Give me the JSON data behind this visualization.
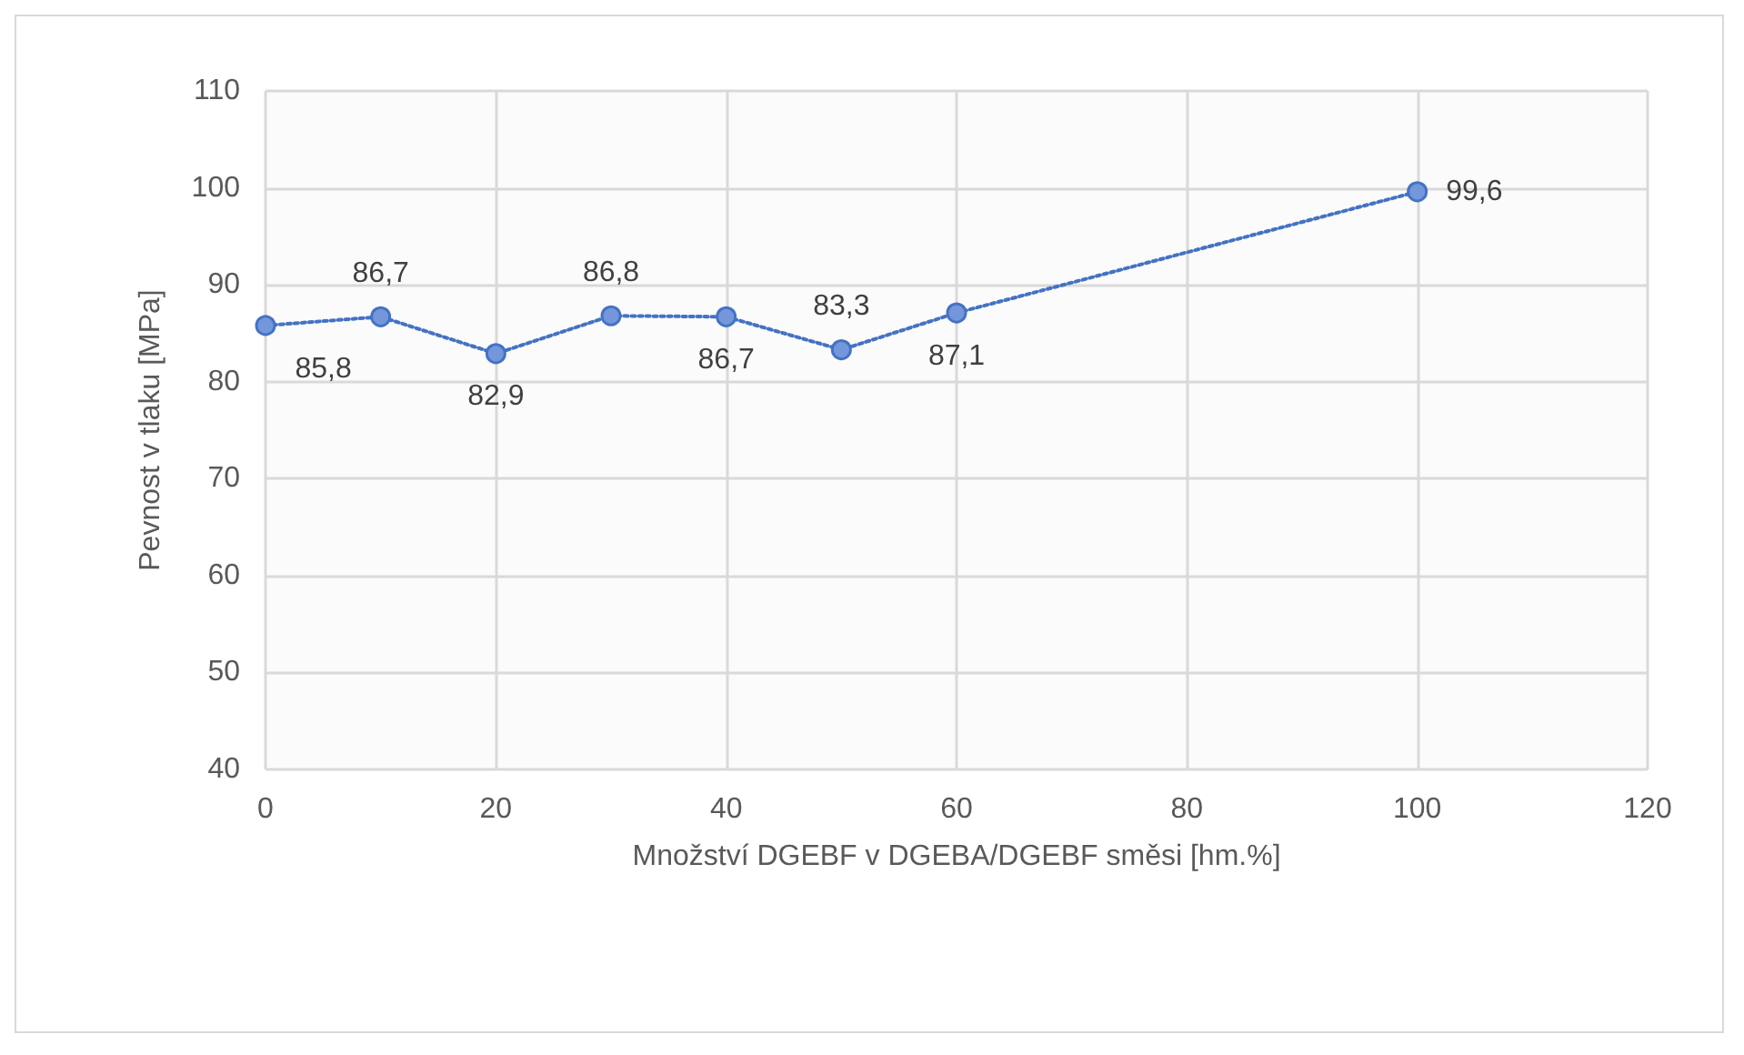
{
  "chart_data": {
    "type": "line",
    "xlabel": "Množství DGEBF v DGEBA/DGEBF směsi [hm.%]",
    "ylabel": "Pevnost v tlaku [MPa]",
    "x": [
      0,
      10,
      20,
      30,
      40,
      50,
      60,
      100
    ],
    "series": [
      {
        "color": "#4472c4",
        "values": [
          85.8,
          86.7,
          82.9,
          86.8,
          86.7,
          83.3,
          87.1,
          99.6
        ],
        "value_labels": [
          "85,8",
          "86,7",
          "82,9",
          "86,8",
          "86,7",
          "83,3",
          "87,1",
          "99,6"
        ]
      }
    ],
    "xlim": [
      0,
      120
    ],
    "xticks": [
      0,
      20,
      40,
      60,
      80,
      100,
      120
    ],
    "ylim": [
      40,
      110
    ],
    "yticks": [
      40,
      50,
      60,
      70,
      80,
      90,
      100,
      110
    ],
    "grid": true,
    "marker": "circle",
    "line_style": "dotted"
  }
}
